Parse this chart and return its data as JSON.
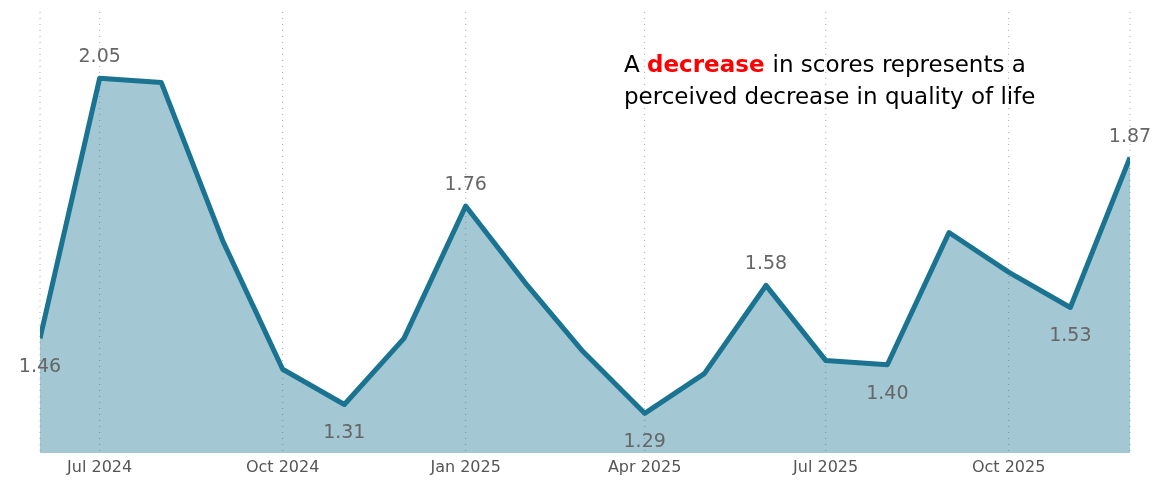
{
  "chart_data": {
    "type": "area",
    "x": [
      "2024-06",
      "2024-07",
      "2024-08",
      "2024-09",
      "2024-10",
      "2024-11",
      "2024-12",
      "2025-01",
      "2025-02",
      "2025-03",
      "2025-04",
      "2025-05",
      "2025-06",
      "2025-07",
      "2025-08",
      "2025-09",
      "2025-10",
      "2025-11",
      "2025-12"
    ],
    "series": [
      {
        "color": "#1a7391",
        "values": [
          1.46,
          2.05,
          2.04,
          1.68,
          1.39,
          1.31,
          1.46,
          1.76,
          1.58,
          1.43,
          1.29,
          1.38,
          1.58,
          1.41,
          1.4,
          1.7,
          1.61,
          1.53,
          1.87
        ],
        "value_labels": [
          "1.46",
          "2.05",
          null,
          null,
          null,
          "1.31",
          null,
          "1.76",
          null,
          null,
          "1.29",
          null,
          "1.58",
          null,
          "1.40",
          null,
          null,
          "1.53",
          "1.87"
        ]
      }
    ],
    "xlim": [
      "2024-06",
      "2025-12"
    ],
    "xticks": [
      {
        "value": "2024-07",
        "label": "Jul 2024"
      },
      {
        "value": "2024-10",
        "label": "Oct 2024"
      },
      {
        "value": "2025-01",
        "label": "Jan 2025"
      },
      {
        "value": "2025-04",
        "label": "Apr 2025"
      },
      {
        "value": "2025-07",
        "label": "Jul 2025"
      },
      {
        "value": "2025-10",
        "label": "Oct 2025"
      }
    ],
    "ylim": [
      1.2,
      2.2
    ],
    "tick_labels": "x",
    "grid": "x",
    "legend": false,
    "annotations": [
      "A decrease in scores represents a perceived decrease in quality of life"
    ]
  }
}
